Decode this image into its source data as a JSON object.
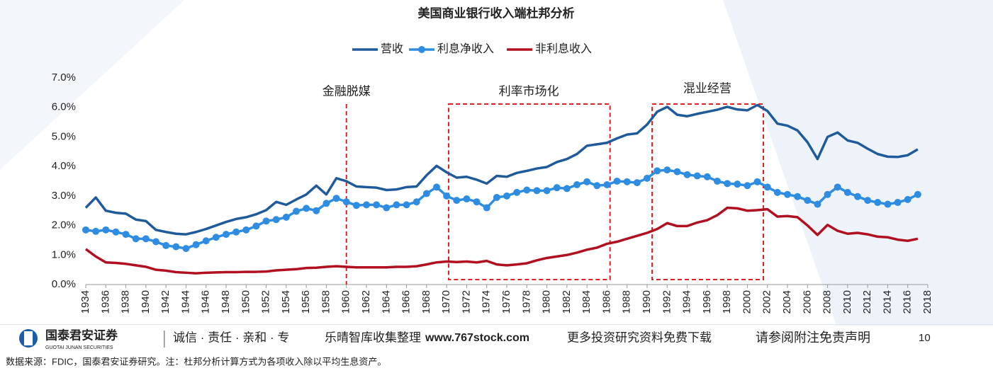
{
  "chart_data": {
    "type": "line",
    "title": "美国商业银行收入端杜邦分析",
    "x": [
      1934,
      1935,
      1936,
      1937,
      1938,
      1939,
      1940,
      1941,
      1942,
      1943,
      1944,
      1945,
      1946,
      1947,
      1948,
      1949,
      1950,
      1951,
      1952,
      1953,
      1954,
      1955,
      1956,
      1957,
      1958,
      1959,
      1960,
      1961,
      1962,
      1963,
      1964,
      1965,
      1966,
      1967,
      1968,
      1969,
      1970,
      1971,
      1972,
      1973,
      1974,
      1975,
      1976,
      1977,
      1978,
      1979,
      1980,
      1981,
      1982,
      1983,
      1984,
      1985,
      1986,
      1987,
      1988,
      1989,
      1990,
      1991,
      1992,
      1993,
      1994,
      1995,
      1996,
      1997,
      1998,
      1999,
      2000,
      2001,
      2002,
      2003,
      2004,
      2005,
      2006,
      2007,
      2008,
      2009,
      2010,
      2011,
      2012,
      2013,
      2014,
      2015,
      2016,
      2017
    ],
    "series": [
      {
        "name": "营收",
        "color": "#1f5a9a",
        "marker": false,
        "values": [
          2.6,
          2.95,
          2.5,
          2.43,
          2.4,
          2.2,
          2.15,
          1.85,
          1.78,
          1.72,
          1.7,
          1.78,
          1.88,
          2.0,
          2.12,
          2.22,
          2.28,
          2.38,
          2.52,
          2.8,
          2.7,
          2.88,
          3.05,
          3.35,
          3.05,
          3.6,
          3.5,
          3.32,
          3.3,
          3.28,
          3.2,
          3.22,
          3.3,
          3.32,
          3.7,
          4.02,
          3.8,
          3.62,
          3.65,
          3.55,
          3.42,
          3.68,
          3.65,
          3.78,
          3.85,
          3.93,
          3.98,
          4.15,
          4.25,
          4.42,
          4.7,
          4.75,
          4.8,
          4.95,
          5.08,
          5.12,
          5.42,
          5.85,
          6.02,
          5.75,
          5.7,
          5.78,
          5.85,
          5.92,
          6.02,
          5.93,
          5.9,
          6.08,
          5.88,
          5.45,
          5.38,
          5.22,
          4.82,
          4.25,
          5.0,
          5.15,
          4.88,
          4.8,
          4.6,
          4.42,
          4.33,
          4.32,
          4.38,
          4.58
        ]
      },
      {
        "name": "利息净收入",
        "color": "#2e8de0",
        "marker": true,
        "values": [
          1.85,
          1.8,
          1.85,
          1.78,
          1.7,
          1.55,
          1.55,
          1.45,
          1.32,
          1.28,
          1.22,
          1.35,
          1.48,
          1.6,
          1.7,
          1.78,
          1.85,
          1.98,
          2.15,
          2.2,
          2.28,
          2.48,
          2.58,
          2.5,
          2.75,
          2.92,
          2.8,
          2.68,
          2.7,
          2.7,
          2.6,
          2.7,
          2.7,
          2.8,
          3.08,
          3.3,
          3.0,
          2.85,
          2.9,
          2.8,
          2.6,
          2.95,
          3.0,
          3.12,
          3.2,
          3.18,
          3.18,
          3.28,
          3.25,
          3.38,
          3.48,
          3.35,
          3.38,
          3.5,
          3.48,
          3.45,
          3.6,
          3.85,
          3.88,
          3.82,
          3.72,
          3.68,
          3.65,
          3.5,
          3.42,
          3.4,
          3.35,
          3.48,
          3.3,
          3.12,
          3.05,
          2.98,
          2.85,
          2.72,
          3.05,
          3.3,
          3.12,
          2.98,
          2.85,
          2.78,
          2.72,
          2.78,
          2.88,
          3.05
        ]
      },
      {
        "name": "非利息收入",
        "color": "#b01020",
        "marker": false,
        "values": [
          1.2,
          0.95,
          0.75,
          0.73,
          0.7,
          0.65,
          0.6,
          0.5,
          0.47,
          0.42,
          0.4,
          0.38,
          0.4,
          0.41,
          0.42,
          0.42,
          0.43,
          0.43,
          0.44,
          0.48,
          0.5,
          0.52,
          0.56,
          0.57,
          0.6,
          0.62,
          0.6,
          0.58,
          0.58,
          0.58,
          0.58,
          0.6,
          0.6,
          0.62,
          0.68,
          0.75,
          0.78,
          0.76,
          0.78,
          0.75,
          0.8,
          0.68,
          0.65,
          0.68,
          0.72,
          0.82,
          0.9,
          0.95,
          1.0,
          1.08,
          1.18,
          1.25,
          1.38,
          1.45,
          1.55,
          1.65,
          1.75,
          1.88,
          2.08,
          1.98,
          1.98,
          2.1,
          2.18,
          2.35,
          2.6,
          2.58,
          2.5,
          2.52,
          2.55,
          2.3,
          2.32,
          2.28,
          2.0,
          1.68,
          2.02,
          1.82,
          1.72,
          1.75,
          1.7,
          1.62,
          1.6,
          1.52,
          1.48,
          1.55
        ]
      }
    ],
    "xlim": [
      1934,
      2018
    ],
    "xticks": [
      1934,
      1936,
      1938,
      1940,
      1942,
      1944,
      1946,
      1948,
      1950,
      1952,
      1954,
      1956,
      1958,
      1960,
      1962,
      1964,
      1966,
      1968,
      1970,
      1972,
      1974,
      1976,
      1978,
      1980,
      1982,
      1984,
      1986,
      1988,
      1990,
      1992,
      1994,
      1996,
      1998,
      2000,
      2002,
      2004,
      2006,
      2008,
      2010,
      2012,
      2014,
      2016,
      2018
    ],
    "ylim": [
      0,
      7
    ],
    "yticks": [
      {
        "value": 0,
        "label": "0.0%"
      },
      {
        "value": 1,
        "label": "1.0%"
      },
      {
        "value": 2,
        "label": "2.0%"
      },
      {
        "value": 3,
        "label": "3.0%"
      },
      {
        "value": 4,
        "label": "4.0%"
      },
      {
        "value": 5,
        "label": "5.0%"
      },
      {
        "value": 6,
        "label": "6.0%"
      },
      {
        "value": 7,
        "label": "7.0%"
      }
    ],
    "legend": "top",
    "annotations": [
      "金融脱媒",
      "利率市场化",
      "混业经营"
    ]
  },
  "footer": {
    "brand": "国泰君安证券",
    "brand_en": "GUOTAI JUNAN SECURITIES",
    "motto": "诚信 · 责任 · 亲和 · 专",
    "watermark_a": "乐晴智库收集整理",
    "watermark_b": "www.767stock.com",
    "watermark_c": "更多投资研究资料免费下载",
    "disclaimer": "请参阅附注免责声明",
    "page": "10",
    "source": "数据来源：FDIC，国泰君安证券研究。注：杜邦分析计算方式为各项收入除以平均生息资产。"
  }
}
